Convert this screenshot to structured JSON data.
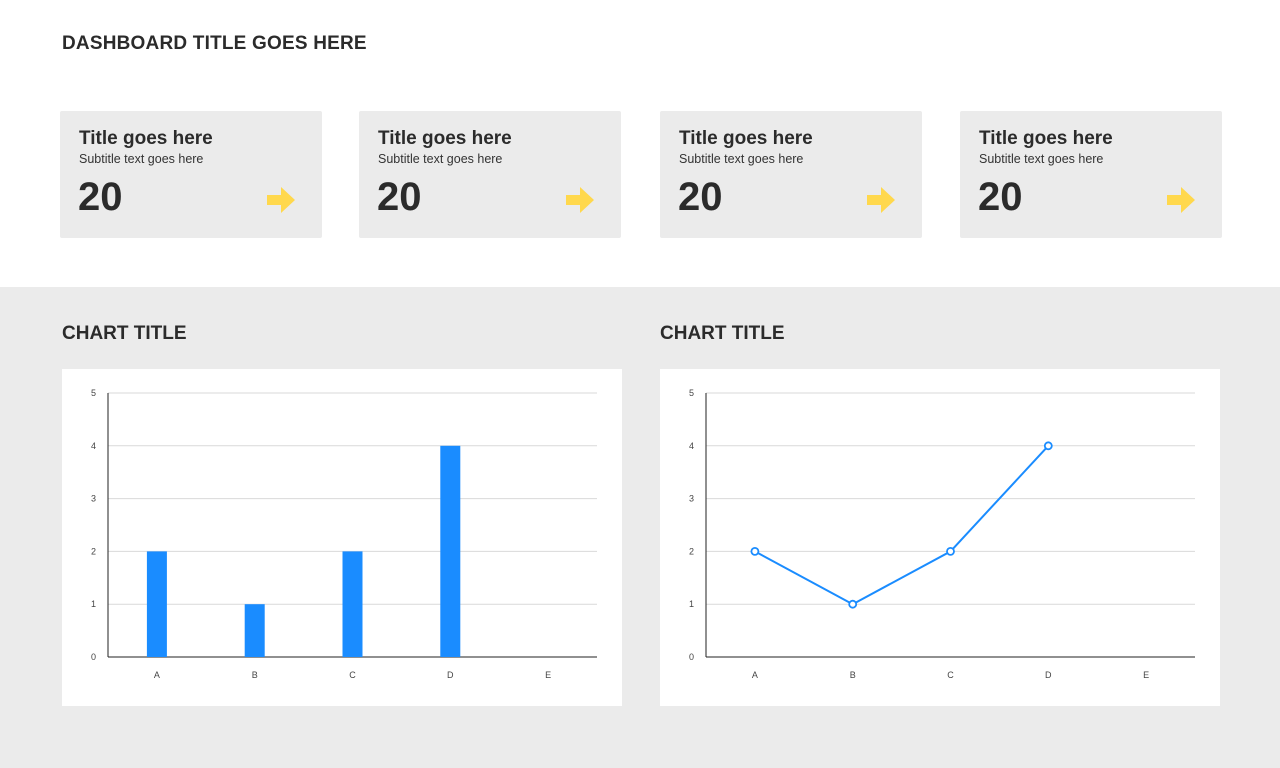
{
  "dashboard": {
    "title": "DASHBOARD TITLE GOES HERE"
  },
  "cards": [
    {
      "title": "Title goes here",
      "subtitle": "Subtitle text goes here",
      "value": "20",
      "icon": "arrow-right-icon"
    },
    {
      "title": "Title goes here",
      "subtitle": "Subtitle text goes here",
      "value": "20",
      "icon": "arrow-right-icon"
    },
    {
      "title": "Title goes here",
      "subtitle": "Subtitle text goes here",
      "value": "20",
      "icon": "arrow-right-icon"
    },
    {
      "title": "Title goes here",
      "subtitle": "Subtitle text goes here",
      "value": "20",
      "icon": "arrow-right-icon"
    }
  ],
  "colors": {
    "accent": "#1a8cff",
    "arrow": "#ffd84d",
    "panel": "#ebebeb",
    "grid": "#d9d9d9"
  },
  "chart_data": [
    {
      "type": "bar",
      "title": "CHART TITLE",
      "categories": [
        "A",
        "B",
        "C",
        "D",
        "E"
      ],
      "values": [
        2,
        1,
        2,
        4,
        null
      ],
      "ylim": [
        0,
        5
      ],
      "yticks": [
        0,
        1,
        2,
        3,
        4,
        5
      ],
      "xlabel": "",
      "ylabel": "",
      "grid": true,
      "color": "#1a8cff"
    },
    {
      "type": "line",
      "title": "CHART TITLE",
      "categories": [
        "A",
        "B",
        "C",
        "D",
        "E"
      ],
      "values": [
        2,
        1,
        2,
        4,
        null
      ],
      "ylim": [
        0,
        5
      ],
      "yticks": [
        0,
        1,
        2,
        3,
        4,
        5
      ],
      "xlabel": "",
      "ylabel": "",
      "grid": true,
      "markers": "hollow-circle",
      "color": "#1a8cff"
    }
  ]
}
